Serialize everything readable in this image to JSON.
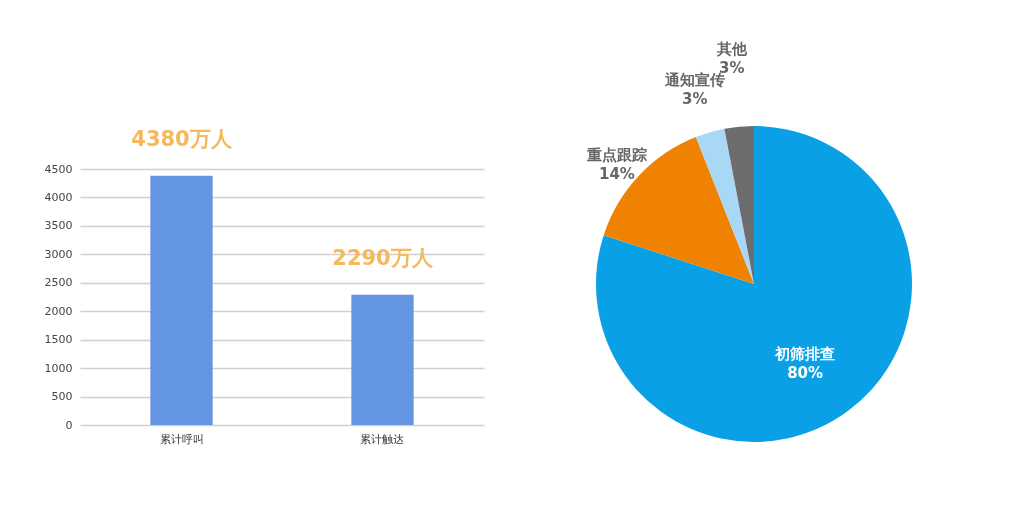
{
  "chart_data": [
    {
      "type": "bar",
      "categories": [
        "累计呼叫",
        "累计触达"
      ],
      "values": [
        4380,
        2290
      ],
      "value_labels": [
        "4380万人",
        "2290万人"
      ],
      "color": "#6495e0",
      "ylim": [
        0,
        4500
      ],
      "yticks": [
        0,
        500,
        1000,
        1500,
        2000,
        2500,
        3000,
        3500,
        4000,
        4500
      ],
      "grid": "y"
    },
    {
      "type": "pie",
      "categories": [
        "初筛排查",
        "重点跟踪",
        "通知宣传",
        "其他"
      ],
      "values": [
        80,
        14,
        3,
        3
      ],
      "value_labels": [
        "80%",
        "14%",
        "3%",
        "3%"
      ],
      "colors": [
        "#0aa0e6",
        "#ef8200",
        "#a8d8f5",
        "#6d6d6d"
      ]
    }
  ]
}
